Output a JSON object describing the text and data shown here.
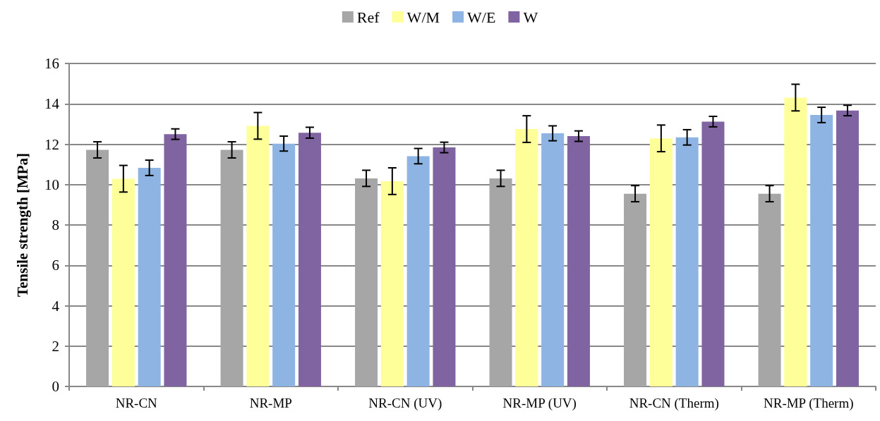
{
  "chart_data": {
    "type": "bar",
    "ylabel": "Tensile strength [MPa]",
    "categories": [
      "NR-CN",
      "NR-MP",
      "NR-CN (UV)",
      "NR-MP (UV)",
      "NR-CN (Therm)",
      "NR-MP (Therm)"
    ],
    "series": [
      {
        "name": "Ref",
        "color": "#a6a6a6",
        "values": [
          11.72,
          11.72,
          10.31,
          10.31,
          9.55,
          9.55
        ],
        "errors": [
          0.4,
          0.4,
          0.4,
          0.4,
          0.4,
          0.4
        ]
      },
      {
        "name": "W/M",
        "color": "#ffff99",
        "values": [
          10.29,
          12.91,
          10.17,
          12.75,
          12.29,
          14.31
        ],
        "errors": [
          0.66,
          0.66,
          0.66,
          0.66,
          0.66,
          0.66
        ]
      },
      {
        "name": "W/E",
        "color": "#8eb4e3",
        "values": [
          10.83,
          12.03,
          11.41,
          12.54,
          12.34,
          13.45
        ],
        "errors": [
          0.38,
          0.37,
          0.38,
          0.37,
          0.38,
          0.38
        ]
      },
      {
        "name": "W",
        "color": "#8064a2",
        "values": [
          12.5,
          12.57,
          11.84,
          12.4,
          13.12,
          13.67
        ],
        "errors": [
          0.26,
          0.27,
          0.26,
          0.26,
          0.26,
          0.26
        ]
      }
    ],
    "ylim": [
      0,
      16
    ],
    "yticks": [
      0,
      2,
      4,
      6,
      8,
      10,
      12,
      14,
      16
    ],
    "grid": "y",
    "legend": "top"
  }
}
